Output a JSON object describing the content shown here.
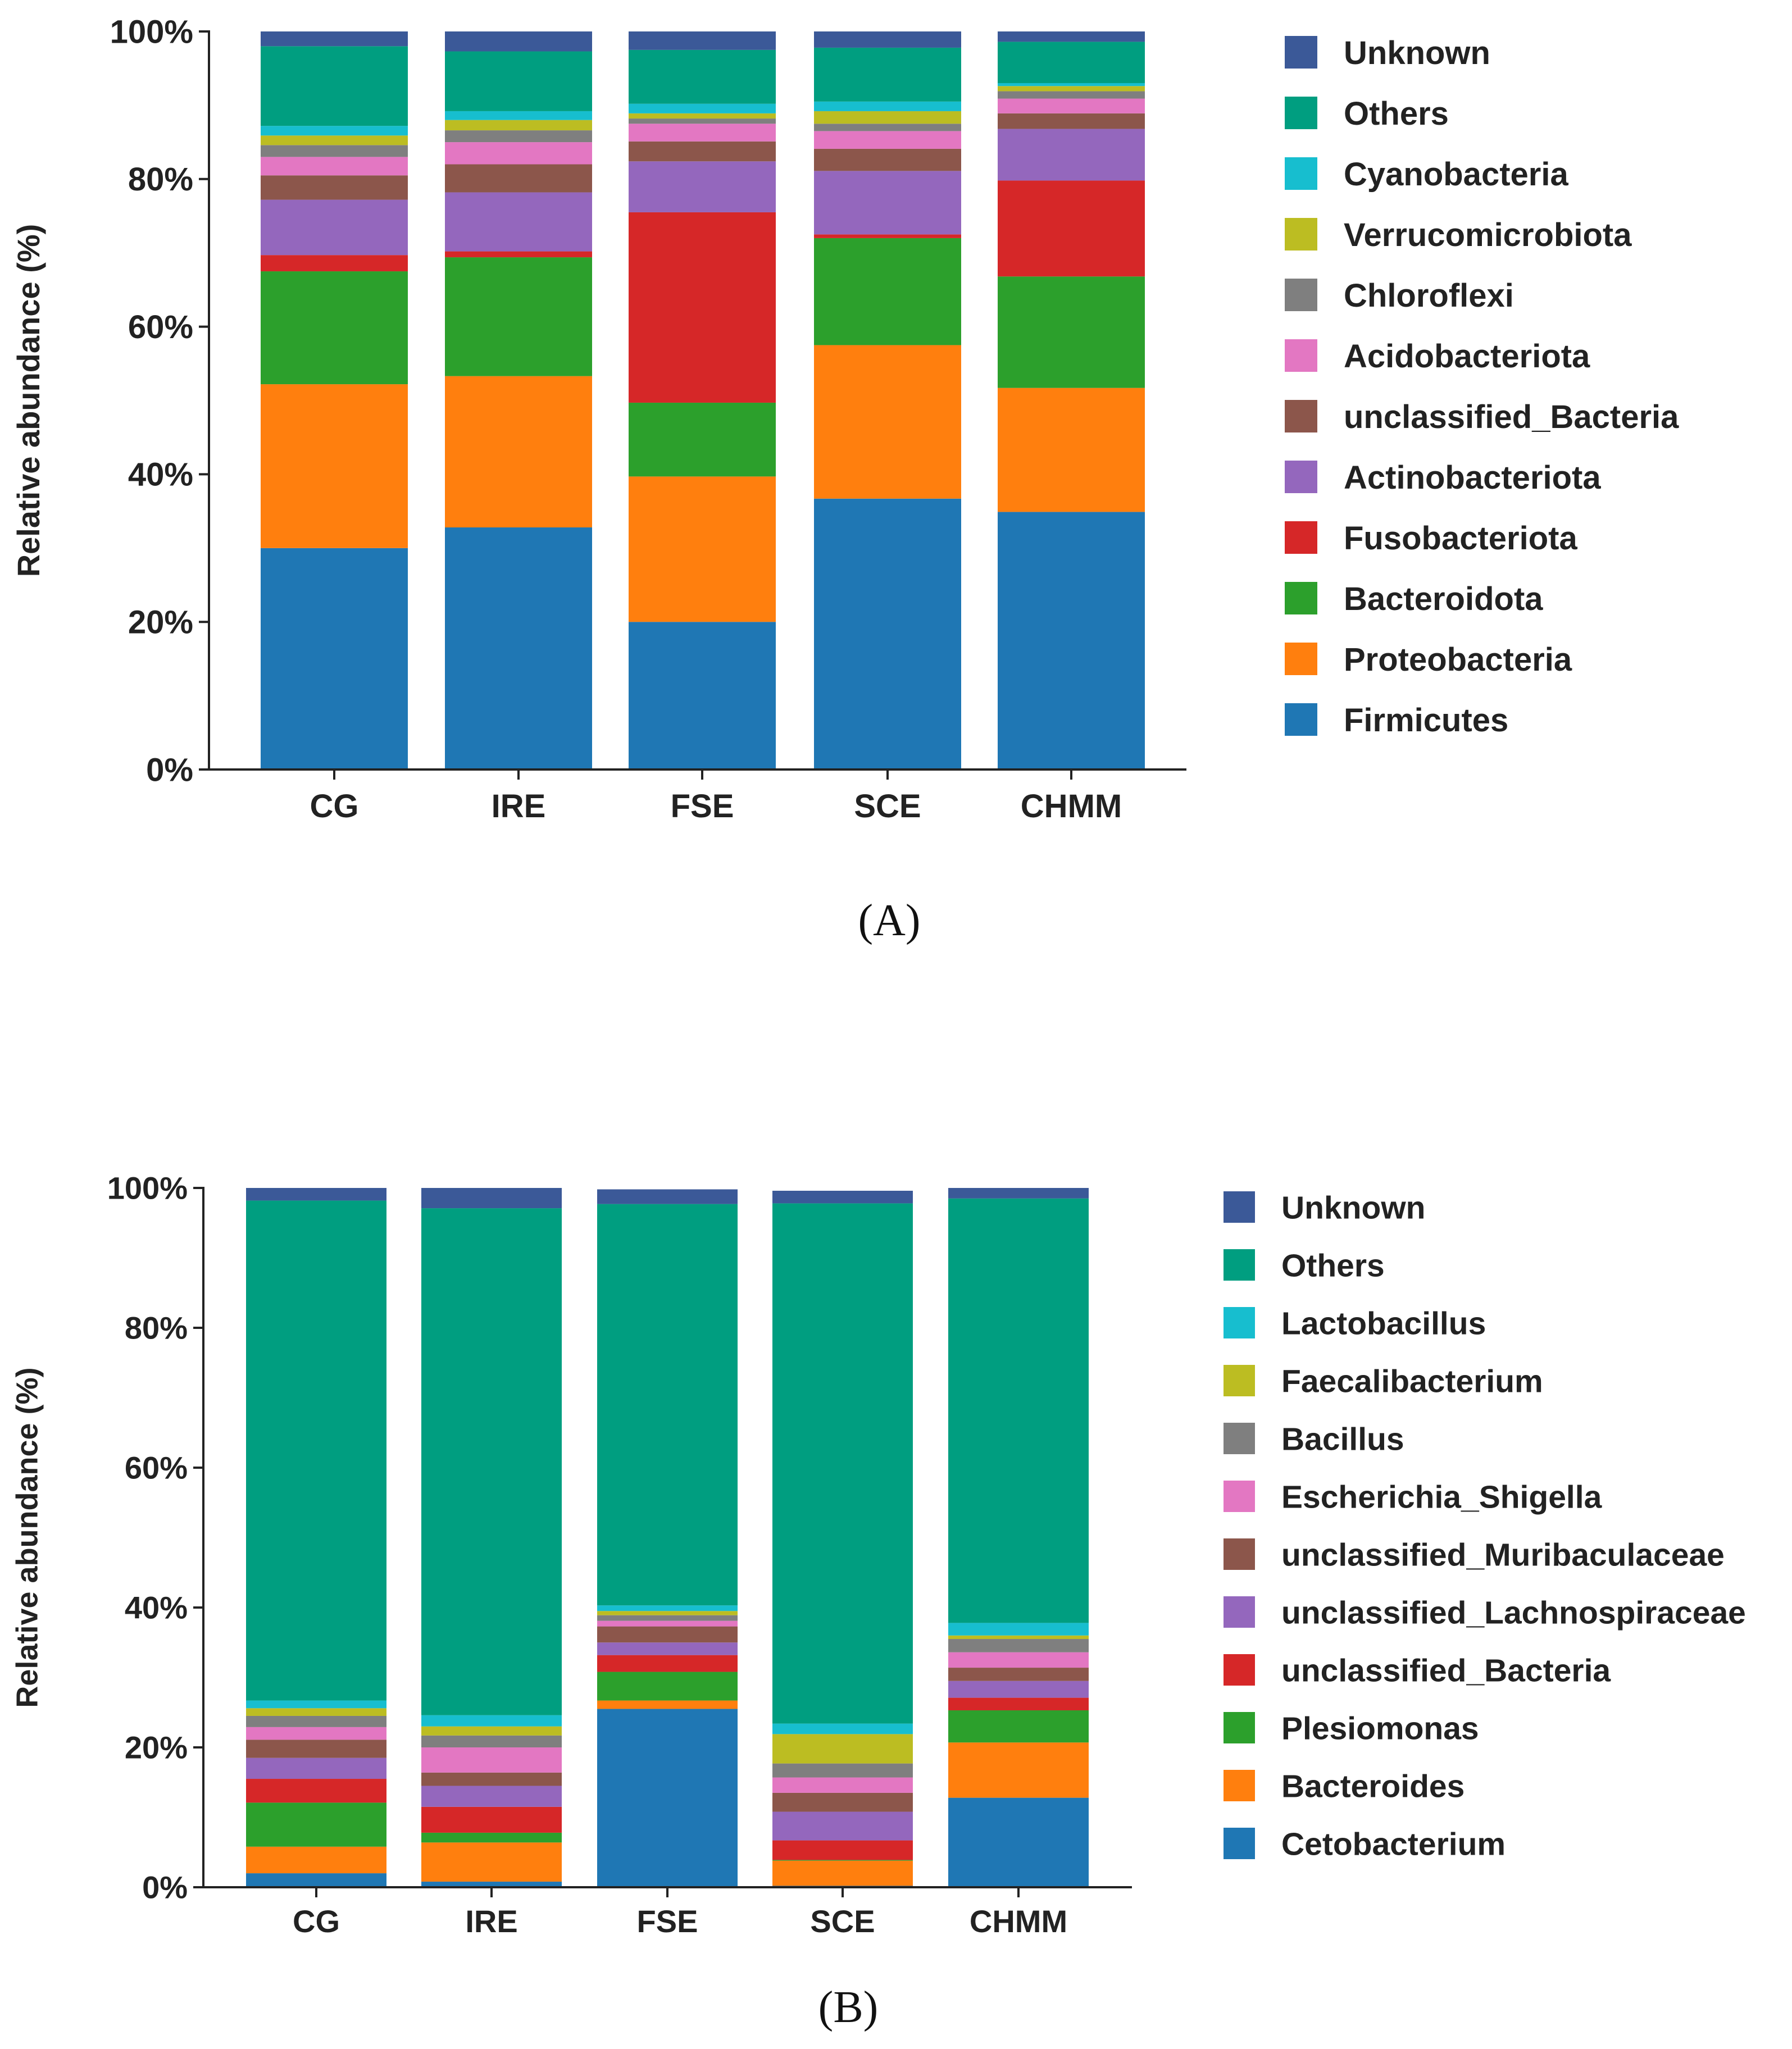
{
  "chart_data": [
    {
      "type": "bar",
      "stacked": true,
      "panel": "(A)",
      "ylabel": "Relative abundance (%)",
      "yticks": [
        "0%",
        "20%",
        "40%",
        "60%",
        "80%",
        "100%"
      ],
      "ylim": [
        0,
        100
      ],
      "categories": [
        "CG",
        "IRE",
        "FSE",
        "SCE",
        "CHMM"
      ],
      "legend_placement": "right",
      "series": [
        {
          "name": "Firmicutes",
          "color": "#1f77b4",
          "values": [
            30.0,
            32.8,
            20.0,
            36.7,
            34.9
          ]
        },
        {
          "name": "Proteobacteria",
          "color": "#ff7f0e",
          "values": [
            22.2,
            20.5,
            19.7,
            20.8,
            16.8
          ]
        },
        {
          "name": "Bacteroidota",
          "color": "#2ca02c",
          "values": [
            15.3,
            16.1,
            10.0,
            14.5,
            15.1
          ]
        },
        {
          "name": "Fusobacteriota",
          "color": "#d62728",
          "values": [
            2.2,
            0.8,
            25.8,
            0.5,
            13.0
          ]
        },
        {
          "name": "Actinobacteriota",
          "color": "#9467bd",
          "values": [
            7.5,
            8.0,
            6.9,
            8.6,
            7.0
          ]
        },
        {
          "name": "unclassified_Bacteria",
          "color": "#8c564b",
          "values": [
            3.3,
            3.8,
            2.7,
            3.0,
            2.1
          ]
        },
        {
          "name": "Acidobacteriota",
          "color": "#e377c2",
          "values": [
            2.5,
            3.0,
            2.4,
            2.4,
            2.0
          ]
        },
        {
          "name": "Chloroflexi",
          "color": "#7f7f7f",
          "values": [
            1.6,
            1.6,
            0.7,
            1.0,
            1.0
          ]
        },
        {
          "name": "Verrucomicrobiota",
          "color": "#bcbd22",
          "values": [
            1.3,
            1.4,
            0.7,
            1.7,
            0.7
          ]
        },
        {
          "name": "Cyanobacteria",
          "color": "#17becf",
          "values": [
            1.3,
            1.2,
            1.3,
            1.3,
            0.4
          ]
        },
        {
          "name": "Others",
          "color": "#009e80",
          "values": [
            10.8,
            8.1,
            7.3,
            7.3,
            5.6
          ]
        },
        {
          "name": "Unknown",
          "color": "#3b5998",
          "values": [
            2.0,
            2.7,
            2.5,
            2.2,
            1.4
          ]
        }
      ],
      "caption": "(A)"
    },
    {
      "type": "bar",
      "stacked": true,
      "panel": "(B)",
      "ylabel": "Relative abundance (%)",
      "yticks": [
        "0%",
        "20%",
        "40%",
        "60%",
        "80%",
        "100%"
      ],
      "ylim": [
        0,
        100
      ],
      "categories": [
        "CG",
        "IRE",
        "FSE",
        "SCE",
        "CHMM"
      ],
      "legend_placement": "right",
      "series": [
        {
          "name": "Cetobacterium",
          "color": "#1f77b4",
          "values": [
            2.0,
            0.8,
            25.5,
            0.2,
            12.8
          ]
        },
        {
          "name": "Bacteroides",
          "color": "#ff7f0e",
          "values": [
            3.8,
            5.6,
            1.2,
            3.6,
            7.9
          ]
        },
        {
          "name": "Plesiomonas",
          "color": "#2ca02c",
          "values": [
            6.3,
            1.4,
            4.1,
            0.1,
            4.6
          ]
        },
        {
          "name": "unclassified_Bacteria",
          "color": "#d62728",
          "values": [
            3.4,
            3.7,
            2.4,
            2.8,
            1.8
          ]
        },
        {
          "name": "unclassified_Lachnospiraceae",
          "color": "#9467bd",
          "values": [
            3.0,
            3.0,
            1.8,
            4.1,
            2.4
          ]
        },
        {
          "name": "unclassified_Muribaculaceae",
          "color": "#8c564b",
          "values": [
            2.6,
            1.9,
            2.3,
            2.7,
            1.9
          ]
        },
        {
          "name": "Escherichia_Shigella",
          "color": "#e377c2",
          "values": [
            1.8,
            3.6,
            0.8,
            2.2,
            2.2
          ]
        },
        {
          "name": "Bacillus",
          "color": "#7f7f7f",
          "values": [
            1.6,
            1.7,
            0.8,
            2.0,
            1.9
          ]
        },
        {
          "name": "Faecalibacterium",
          "color": "#bcbd22",
          "values": [
            1.1,
            1.3,
            0.6,
            4.2,
            0.5
          ]
        },
        {
          "name": "Lactobacillus",
          "color": "#17becf",
          "values": [
            1.1,
            1.6,
            0.8,
            1.5,
            1.8
          ]
        },
        {
          "name": "Others",
          "color": "#009e80",
          "values": [
            71.5,
            72.5,
            57.4,
            74.4,
            60.7
          ]
        },
        {
          "name": "Unknown",
          "color": "#3b5998",
          "values": [
            1.8,
            2.9,
            2.1,
            1.8,
            1.5
          ]
        }
      ],
      "caption": "(B)"
    }
  ]
}
